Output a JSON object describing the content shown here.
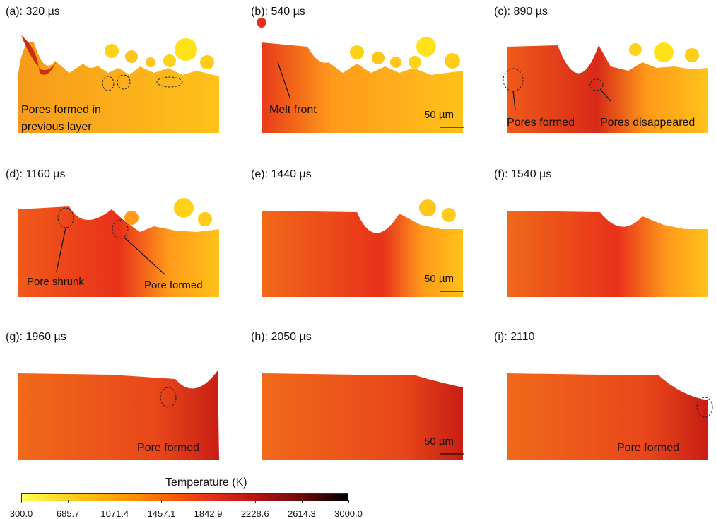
{
  "panels": [
    {
      "id": "a",
      "title": "(a): 320 µs",
      "annotations": [
        "Pores formed in",
        "previous layer"
      ],
      "scale": ""
    },
    {
      "id": "b",
      "title": "(b): 540 µs",
      "annotations": [
        "Melt front"
      ],
      "scale": "50 µm"
    },
    {
      "id": "c",
      "title": "(c): 890 µs",
      "annotations": [
        "Pores formed",
        "Pores disappeared"
      ],
      "scale": ""
    },
    {
      "id": "d",
      "title": "(d): 1160 µs",
      "annotations": [
        "Pore shrunk",
        "Pore formed"
      ],
      "scale": ""
    },
    {
      "id": "e",
      "title": "(e): 1440 µs",
      "annotations": [],
      "scale": "50 µm"
    },
    {
      "id": "f",
      "title": "(f): 1540 µs",
      "annotations": [],
      "scale": ""
    },
    {
      "id": "g",
      "title": "(g): 1960 µs",
      "annotations": [
        "Pore formed"
      ],
      "scale": ""
    },
    {
      "id": "h",
      "title": "(h): 2050 µs",
      "annotations": [],
      "scale": "50 µm"
    },
    {
      "id": "i",
      "title": "(i): 2110",
      "annotations": [
        "Pore formed"
      ],
      "scale": ""
    }
  ],
  "colorbar": {
    "title": "Temperature (K)",
    "ticks": [
      "300.0",
      "685.7",
      "1071.4",
      "1457.1",
      "1842.9",
      "2228.6",
      "2614.3",
      "3000.0"
    ],
    "colors": [
      "#ffff55",
      "#ffd21a",
      "#ffa500",
      "#ff6a00",
      "#e8311a",
      "#b81414",
      "#6e0a0a",
      "#000000"
    ]
  }
}
